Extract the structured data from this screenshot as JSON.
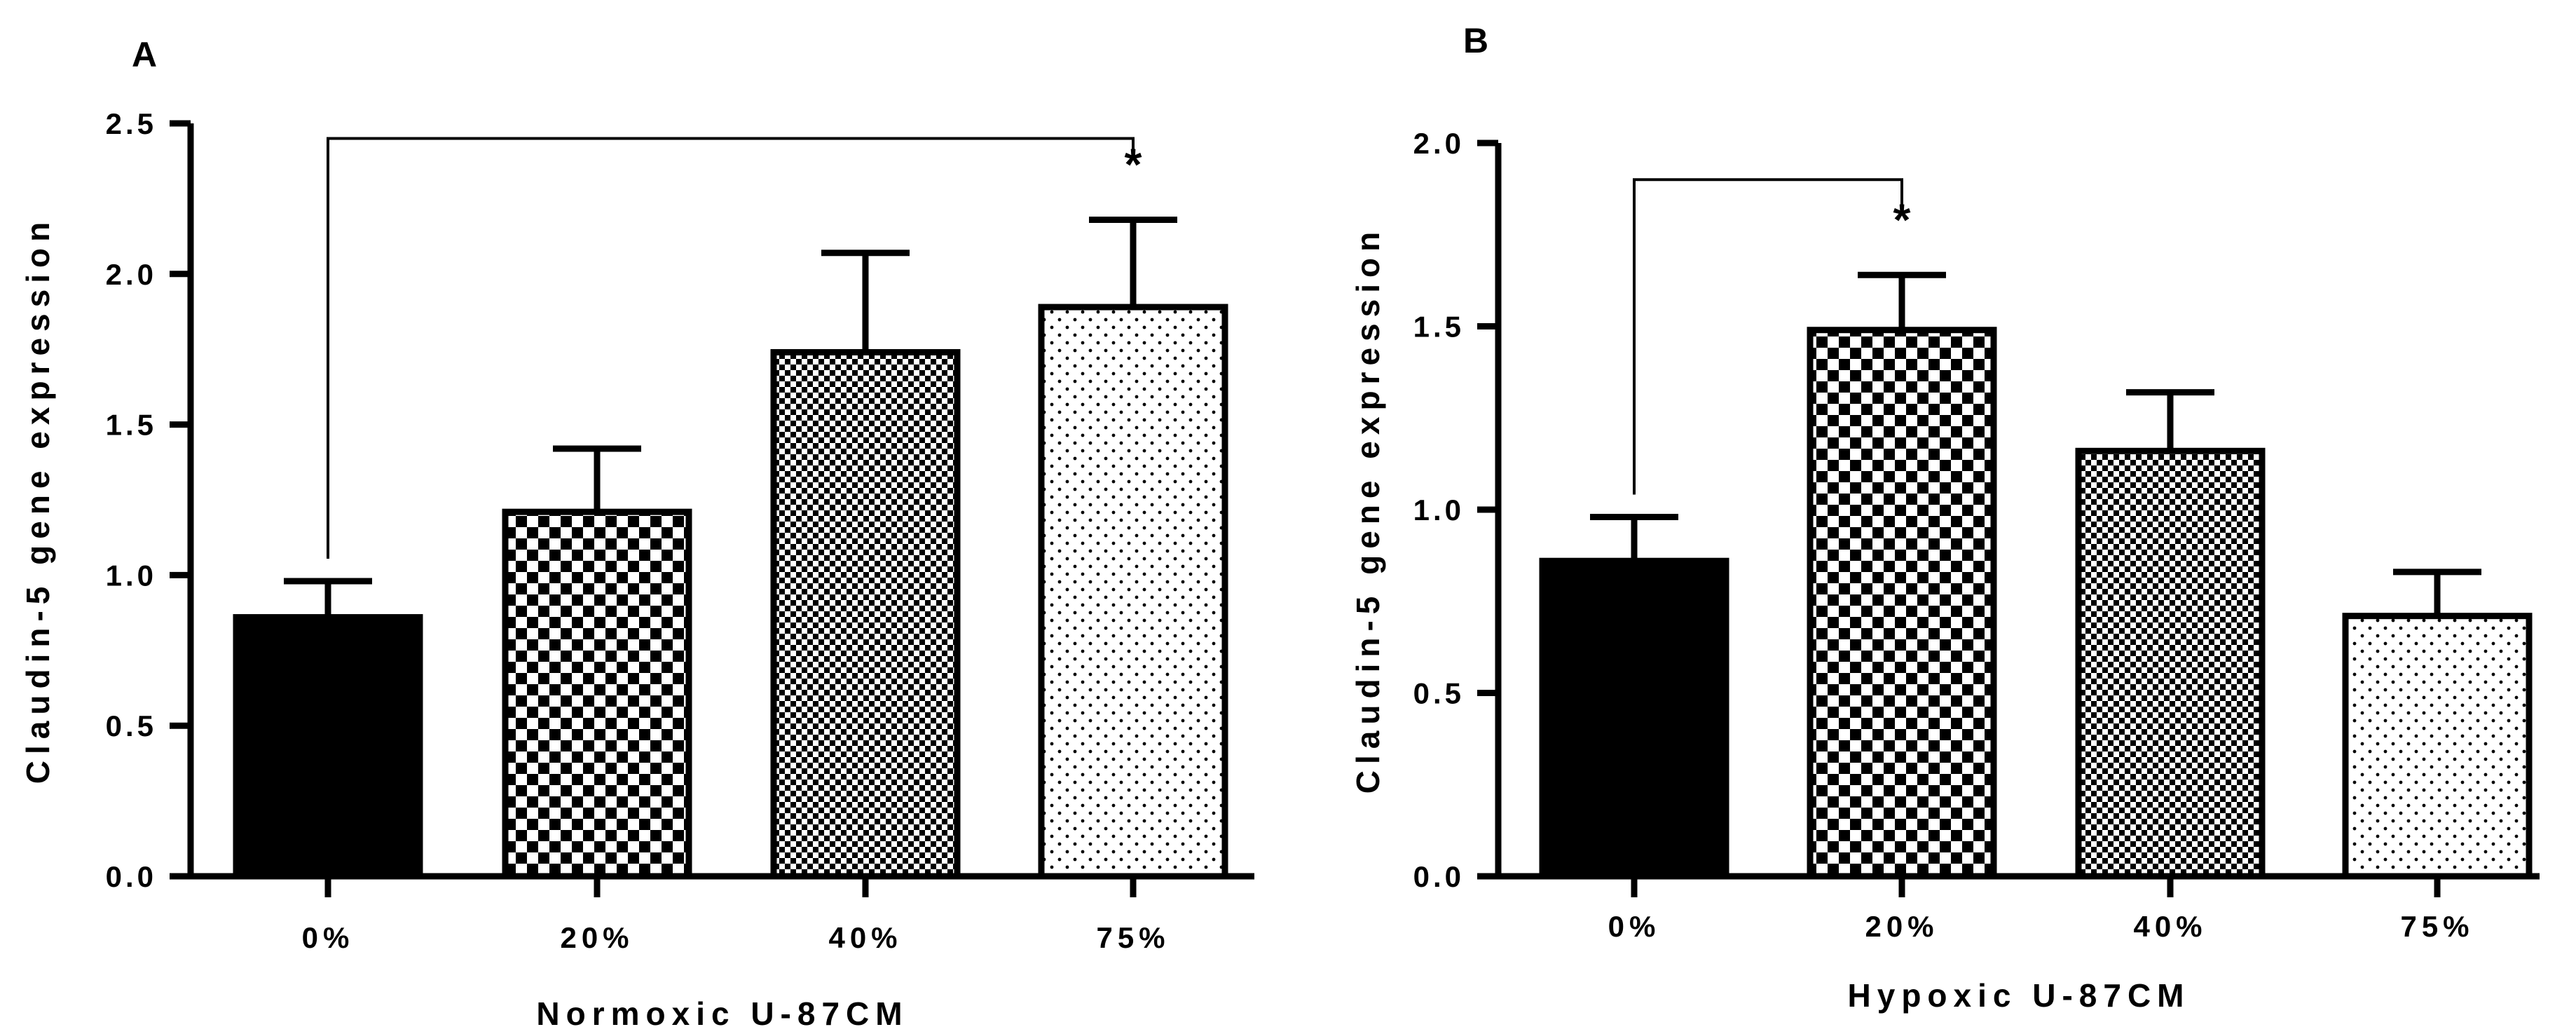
{
  "chart_data": [
    {
      "type": "bar",
      "panel": "A",
      "title": "",
      "xlabel": "Normoxic U-87CM",
      "ylabel": "Claudin-5 gene expression",
      "categories": [
        "0%",
        "20%",
        "40%",
        "75%"
      ],
      "values": [
        0.86,
        1.21,
        1.74,
        1.89
      ],
      "errors": [
        0.12,
        0.21,
        0.33,
        0.29
      ],
      "patterns": [
        "solid",
        "checker-large",
        "checker-small",
        "dots"
      ],
      "ylim": [
        0,
        2.5
      ],
      "yticks": [
        0.0,
        0.5,
        1.0,
        1.5,
        2.0,
        2.5
      ],
      "ytick_labels": [
        "0.0",
        "0.5",
        "1.0",
        "1.5",
        "2.0",
        "2.5"
      ],
      "significance": {
        "from": 0,
        "to": 3,
        "label": "*",
        "y": 2.45
      },
      "grid": false
    },
    {
      "type": "bar",
      "panel": "B",
      "title": "",
      "xlabel": "Hypoxic U-87CM",
      "ylabel": "Claudin-5 gene expression",
      "categories": [
        "0%",
        "20%",
        "40%",
        "75%"
      ],
      "values": [
        0.86,
        1.49,
        1.16,
        0.71
      ],
      "errors": [
        0.12,
        0.15,
        0.16,
        0.12
      ],
      "patterns": [
        "solid",
        "checker-large",
        "checker-small",
        "dots"
      ],
      "ylim": [
        0,
        2.0
      ],
      "yticks": [
        0.0,
        0.5,
        1.0,
        1.5,
        2.0
      ],
      "ytick_labels": [
        "0.0",
        "0.5",
        "1.0",
        "1.5",
        "2.0"
      ],
      "significance": {
        "from": 0,
        "to": 1,
        "label": "*",
        "y": 1.9
      },
      "grid": false
    }
  ]
}
